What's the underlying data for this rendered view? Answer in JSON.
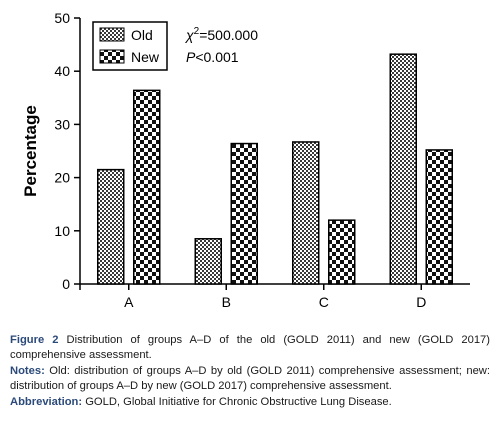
{
  "chart_data": {
    "type": "bar",
    "categories": [
      "A",
      "B",
      "C",
      "D"
    ],
    "series": [
      {
        "name": "Old",
        "values": [
          21.5,
          8.5,
          26.7,
          43.2
        ]
      },
      {
        "name": "New",
        "values": [
          36.4,
          26.4,
          12.0,
          25.2
        ]
      }
    ],
    "xlabel": "",
    "ylabel": "Percentage",
    "ylim": [
      0,
      50
    ],
    "yticks": [
      0,
      10,
      20,
      30,
      40,
      50
    ],
    "legend_position": "top-left",
    "grid": false,
    "annotations": [
      {
        "symbol": "χ",
        "superscript": "2",
        "text": "=500.000"
      },
      {
        "symbol": "P",
        "text": "<0.001"
      }
    ]
  },
  "caption": {
    "figure_label": "Figure 2",
    "figure_text": " Distribution of groups A–D of the old (GOLD 2011) and new (GOLD 2017) comprehensive assessment.",
    "notes_label": "Notes:",
    "notes_text": " Old: distribution of groups A–D by old (GOLD 2011) comprehensive assessment; new: distribution of groups A–D by new (GOLD 2017) comprehensive assessment.",
    "abbrev_label": "Abbreviation:",
    "abbrev_text": " GOLD, Global Initiative for Chronic Obstructive Lung Disease."
  },
  "colors": {
    "text": "#000000",
    "caption_lead": "#2b4a7a",
    "bar_fill": "#ffffff",
    "pattern_ink": "#1a1a1a"
  }
}
